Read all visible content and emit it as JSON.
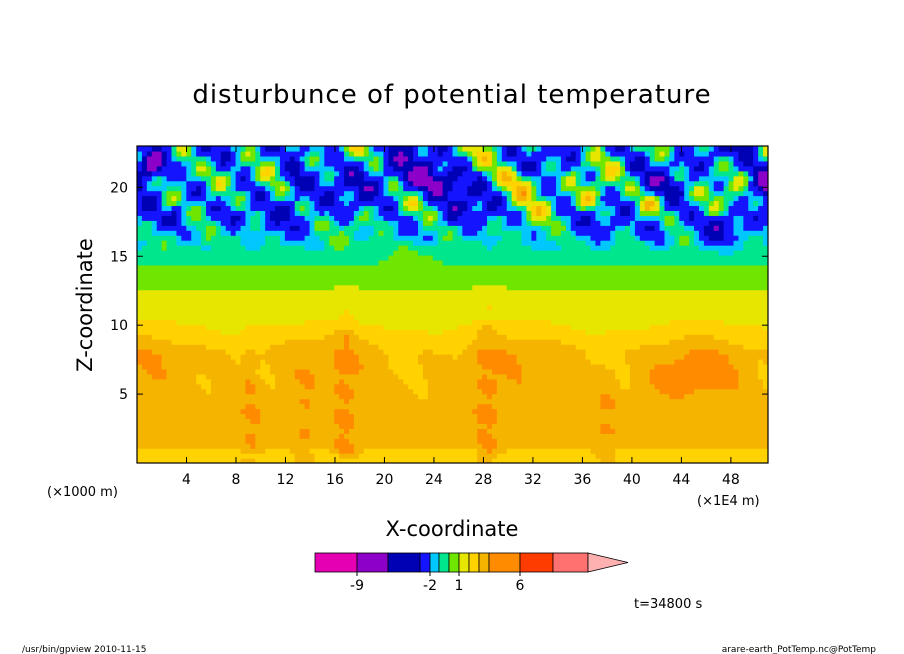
{
  "chart_data": {
    "type": "heatmap",
    "title": "disturbunce of potential temperature",
    "xlabel": "X-coordinate",
    "ylabel": "Z-coordinate",
    "x_unit_left": "(×1000 m)",
    "x_unit_right": "(×1E4 m)",
    "xlim": [
      0,
      51
    ],
    "ylim": [
      0,
      23
    ],
    "x_ticks": [
      4,
      8,
      12,
      16,
      20,
      24,
      28,
      32,
      36,
      40,
      44,
      48
    ],
    "y_ticks": [
      5,
      10,
      15,
      20
    ],
    "colorbar": {
      "levels": [
        -12,
        -9,
        -6,
        -4,
        -2,
        -1,
        0,
        1,
        2,
        3,
        4,
        6,
        8,
        10,
        12
      ],
      "colors": [
        "#e600b4",
        "#8c00c8",
        "#0000b4",
        "#1414ff",
        "#00c8ff",
        "#00e68c",
        "#6ee600",
        "#e6e600",
        "#ffd200",
        "#f5b400",
        "#ff8c00",
        "#ff3c00",
        "#ff7070",
        "#ffb0b0"
      ],
      "tick_labels": [
        "-9",
        "-2",
        "1",
        "6"
      ],
      "tick_values": [
        -9,
        -2,
        1,
        6
      ]
    },
    "grid": false,
    "time_label": "t=34800 s"
  },
  "footer": {
    "left": "/usr/bin/gpview   2010-11-15",
    "right": "arare-earth_PotTemp.nc@PotTemp"
  }
}
